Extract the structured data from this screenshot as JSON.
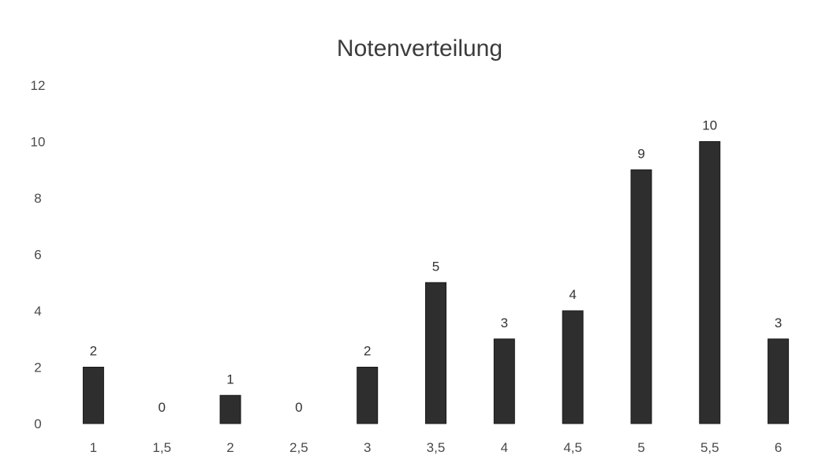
{
  "chart_data": {
    "type": "bar",
    "title": "Notenverteilung",
    "xlabel": "",
    "ylabel": "",
    "categories": [
      "1",
      "1,5",
      "2",
      "2,5",
      "3",
      "3,5",
      "4",
      "4,5",
      "5",
      "5,5",
      "6"
    ],
    "values": [
      2,
      0,
      1,
      0,
      2,
      5,
      3,
      4,
      9,
      10,
      3
    ],
    "ylim": [
      0,
      12
    ],
    "yticks": [
      0,
      2,
      4,
      6,
      8,
      10,
      12
    ],
    "grid": false,
    "legend": "none",
    "data_labels": true,
    "bar_color": "#2e2e2e"
  }
}
